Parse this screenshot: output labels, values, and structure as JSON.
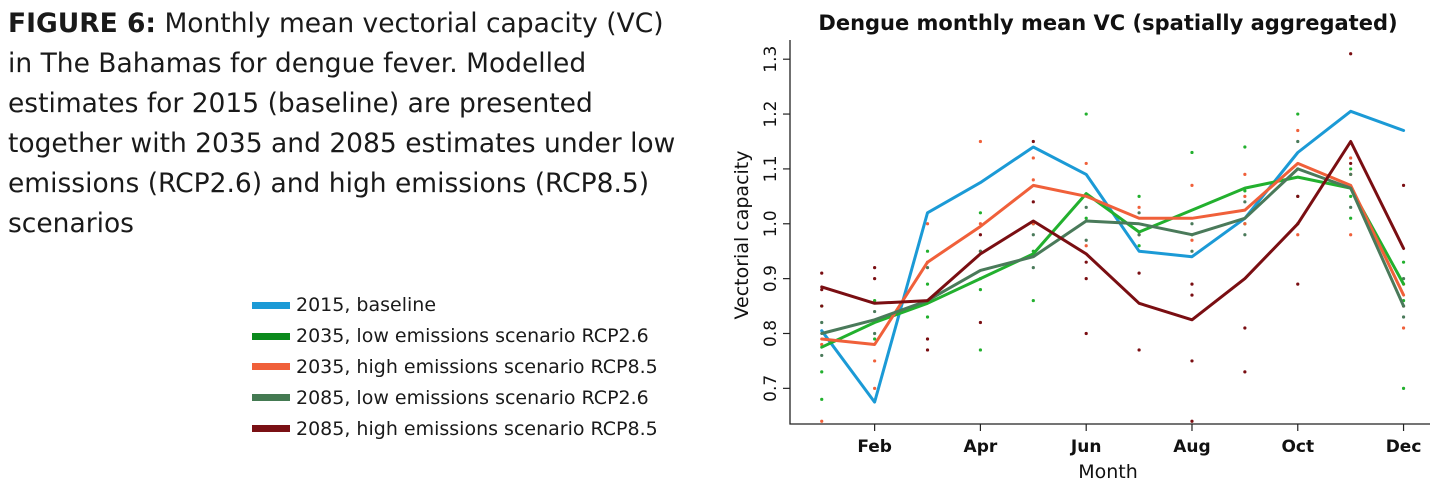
{
  "caption": {
    "label": "FIGURE 6:",
    "text": " Monthly mean vectorial capacity (VC) in The Bahamas for dengue fever. Modelled estimates for 2015 (baseline) are presented together with 2035 and 2085 estimates under low emissions (RCP2.6) and high emissions (RCP8.5) scenarios"
  },
  "chart_data": {
    "type": "line",
    "title": "Dengue monthly mean VC (spatially aggregated)",
    "xlabel": "Month",
    "ylabel": "Vectorial capacity",
    "x": [
      1,
      2,
      3,
      4,
      5,
      6,
      7,
      8,
      9,
      10,
      11,
      12
    ],
    "xticks": [
      {
        "x": 2,
        "label": "Feb"
      },
      {
        "x": 4,
        "label": "Apr"
      },
      {
        "x": 6,
        "label": "Jun"
      },
      {
        "x": 8,
        "label": "Aug"
      },
      {
        "x": 10,
        "label": "Oct"
      },
      {
        "x": 12,
        "label": "Dec"
      }
    ],
    "xlim": [
      0.4,
      12.5
    ],
    "ylim": [
      0.635,
      1.335
    ],
    "yticks": [
      0.7,
      0.8,
      0.9,
      1.0,
      1.1,
      1.2,
      1.3
    ],
    "ytick_labels": [
      "0.7",
      "0.8",
      "0.9",
      "1.0",
      "1.1",
      "1.2",
      "1.3"
    ],
    "legend_position": "left",
    "series": [
      {
        "name": "2015, baseline",
        "color": "#1b9ad6",
        "values": [
          0.805,
          0.675,
          1.02,
          1.075,
          1.14,
          1.09,
          0.95,
          0.94,
          1.01,
          1.13,
          1.205,
          1.17
        ],
        "points": []
      },
      {
        "name": "2035, low emissions scenario RCP2.6",
        "color": "#22b02e",
        "legend_color": "#0b8a1d",
        "values": [
          0.775,
          0.82,
          0.855,
          0.9,
          0.945,
          1.055,
          0.985,
          1.025,
          1.065,
          1.085,
          1.065,
          0.89
        ],
        "points": [
          [
            1,
            0.68
          ],
          [
            1,
            0.73
          ],
          [
            1,
            0.85
          ],
          [
            2,
            0.79
          ],
          [
            2,
            0.86
          ],
          [
            3,
            0.83
          ],
          [
            3,
            0.89
          ],
          [
            3,
            0.95
          ],
          [
            4,
            0.77
          ],
          [
            4,
            0.88
          ],
          [
            4,
            1.02
          ],
          [
            5,
            0.86
          ],
          [
            5,
            0.95
          ],
          [
            5,
            1.0
          ],
          [
            6,
            1.01
          ],
          [
            6,
            1.2
          ],
          [
            7,
            0.96
          ],
          [
            7,
            1.05
          ],
          [
            8,
            0.98
          ],
          [
            8,
            1.13
          ],
          [
            9,
            1.0
          ],
          [
            9,
            1.06
          ],
          [
            9,
            1.14
          ],
          [
            10,
            1.0
          ],
          [
            10,
            1.1
          ],
          [
            10,
            1.2
          ],
          [
            11,
            1.01
          ],
          [
            11,
            1.05
          ],
          [
            11,
            1.1
          ],
          [
            12,
            0.7
          ],
          [
            12,
            0.86
          ],
          [
            12,
            0.93
          ]
        ]
      },
      {
        "name": "2035, high emissions scenario RCP8.5",
        "color": "#f0603a",
        "values": [
          0.79,
          0.78,
          0.93,
          0.995,
          1.07,
          1.05,
          1.01,
          1.01,
          1.025,
          1.11,
          1.07,
          0.87
        ],
        "points": [
          [
            1,
            0.64
          ],
          [
            1,
            0.78
          ],
          [
            2,
            0.7
          ],
          [
            2,
            0.75
          ],
          [
            3,
            0.93
          ],
          [
            3,
            1.0
          ],
          [
            4,
            0.95
          ],
          [
            4,
            1.0
          ],
          [
            4,
            1.15
          ],
          [
            5,
            1.0
          ],
          [
            5,
            1.08
          ],
          [
            5,
            1.12
          ],
          [
            6,
            0.96
          ],
          [
            6,
            1.11
          ],
          [
            7,
            0.98
          ],
          [
            7,
            1.03
          ],
          [
            8,
            0.97
          ],
          [
            8,
            1.07
          ],
          [
            9,
            1.0
          ],
          [
            9,
            1.05
          ],
          [
            9,
            1.09
          ],
          [
            10,
            0.98
          ],
          [
            10,
            1.17
          ],
          [
            11,
            0.98
          ],
          [
            11,
            1.09
          ],
          [
            11,
            1.12
          ],
          [
            12,
            0.81
          ],
          [
            12,
            0.89
          ]
        ]
      },
      {
        "name": "2085, low emissions scenario RCP2.6",
        "color": "#4a7a5a",
        "legend_color": "#447a52",
        "values": [
          0.8,
          0.825,
          0.86,
          0.915,
          0.94,
          1.005,
          1.0,
          0.98,
          1.01,
          1.1,
          1.065,
          0.85
        ],
        "points": [
          [
            1,
            0.76
          ],
          [
            1,
            0.82
          ],
          [
            2,
            0.8
          ],
          [
            2,
            0.84
          ],
          [
            3,
            0.86
          ],
          [
            3,
            0.92
          ],
          [
            4,
            0.9
          ],
          [
            4,
            0.95
          ],
          [
            5,
            0.92
          ],
          [
            5,
            0.98
          ],
          [
            6,
            0.97
          ],
          [
            6,
            1.03
          ],
          [
            7,
            0.98
          ],
          [
            7,
            1.02
          ],
          [
            8,
            0.95
          ],
          [
            8,
            1.0
          ],
          [
            9,
            0.98
          ],
          [
            9,
            1.04
          ],
          [
            10,
            1.05
          ],
          [
            10,
            1.15
          ],
          [
            11,
            1.03
          ],
          [
            11,
            1.09
          ],
          [
            12,
            0.83
          ],
          [
            12,
            0.9
          ]
        ]
      },
      {
        "name": "2085, high emissions scenario RCP8.5",
        "color": "#7a0e12",
        "legend_color": "#7a1014",
        "values": [
          0.885,
          0.855,
          0.86,
          0.945,
          1.005,
          0.945,
          0.855,
          0.825,
          0.9,
          1.0,
          1.15,
          0.955
        ],
        "points": [
          [
            1,
            0.85
          ],
          [
            1,
            0.88
          ],
          [
            1,
            0.91
          ],
          [
            2,
            0.9
          ],
          [
            2,
            0.92
          ],
          [
            3,
            0.77
          ],
          [
            3,
            0.79
          ],
          [
            4,
            0.82
          ],
          [
            4,
            0.98
          ],
          [
            5,
            1.04
          ],
          [
            5,
            1.15
          ],
          [
            6,
            0.8
          ],
          [
            6,
            0.9
          ],
          [
            6,
            0.93
          ],
          [
            7,
            0.77
          ],
          [
            7,
            0.91
          ],
          [
            8,
            0.64
          ],
          [
            8,
            0.75
          ],
          [
            8,
            0.87
          ],
          [
            8,
            0.89
          ],
          [
            9,
            0.73
          ],
          [
            9,
            0.81
          ],
          [
            10,
            0.89
          ],
          [
            10,
            1.05
          ],
          [
            11,
            1.11
          ],
          [
            11,
            1.31
          ],
          [
            12,
            0.85
          ],
          [
            12,
            1.07
          ]
        ]
      }
    ]
  }
}
